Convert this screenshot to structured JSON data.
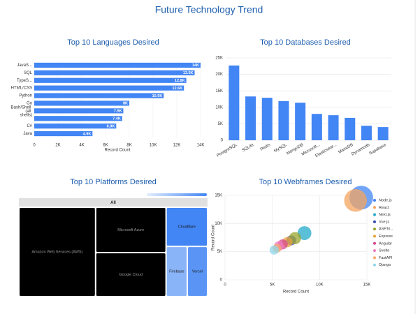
{
  "title": "Future Technology Trend",
  "chart_data": [
    {
      "type": "hbar",
      "title": "Top 10 Languages Desired",
      "xlabel": "Record Count",
      "color": "#4285f4",
      "grid": true,
      "categories": [
        "JavaS...",
        "SQL",
        "TypeS...",
        "HTML/CSS",
        "Python",
        "Go",
        "Bash/Shell (all shells)",
        null,
        "C#",
        "Java"
      ],
      "values": [
        14000,
        13500,
        12800,
        12600,
        10900,
        8000,
        7500,
        7400,
        6900,
        4900
      ],
      "value_labels": [
        "14K",
        "13.5K",
        "12.8K",
        "12.6K",
        "10.9K",
        "8K",
        "7.5K",
        "7.4K",
        "6.9K",
        "4.9K"
      ],
      "xlim": [
        0,
        14000
      ],
      "xticks": [
        0,
        {
          "value": 2000,
          "label": "2K"
        },
        {
          "value": 4000,
          "label": "4K"
        },
        {
          "value": 6000,
          "label": "6K"
        },
        {
          "value": 8000,
          "label": "8K"
        },
        {
          "value": 10000,
          "label": "10K"
        },
        {
          "value": 12000,
          "label": "12K"
        },
        {
          "value": 14000,
          "label": "14K"
        }
      ]
    },
    {
      "type": "bar",
      "title": "Top 10 Databases Desired",
      "color": "#4285f4",
      "grid": true,
      "categories": [
        "PostgreSQL",
        "SQLite",
        "Redis",
        "MySQL",
        "MongoDB",
        "Microsoft...",
        "Elasticsear...",
        "MariaDB",
        "Dynamodb",
        "Supabase"
      ],
      "values": [
        22700,
        13300,
        12900,
        11900,
        11400,
        8000,
        7600,
        6800,
        4400,
        4000
      ],
      "ylim": [
        0,
        25000
      ],
      "yticks": [
        0,
        {
          "value": 5000,
          "label": "5K"
        },
        {
          "value": 10000,
          "label": "10K"
        },
        {
          "value": 15000,
          "label": "15K"
        },
        {
          "value": 20000,
          "label": "20K"
        },
        {
          "value": 25000,
          "label": "25K"
        }
      ]
    },
    {
      "type": "treemap",
      "title": "Top 10 Platforms Desired",
      "header": "All",
      "color_scale": [
        "#e3edfd",
        "#4285f4"
      ],
      "categories": [
        "Amazon Web Services (AWS)",
        "Microsoft Azure",
        "Google Cloud",
        "Cloudflare",
        "Firebase",
        "Vercel"
      ],
      "values": [
        13500,
        6300,
        6100,
        3200,
        2100,
        2000
      ],
      "colors": [
        "#000000",
        "#000000",
        "#000000",
        "#4285f4",
        "#8ab4f8",
        "#5a95f5"
      ]
    },
    {
      "type": "scatter",
      "title": "Top 10 Webframes Desired",
      "xlabel": "Record Count",
      "ylabel": "Record Count",
      "grid": true,
      "legend": "right",
      "xlim": [
        0,
        15000
      ],
      "ylim": [
        0,
        15000
      ],
      "xticks": [
        0,
        {
          "value": 5000,
          "label": "5K"
        },
        {
          "value": 10000,
          "label": "10K"
        },
        {
          "value": 15000,
          "label": "15K"
        }
      ],
      "yticks": [
        0,
        {
          "value": 5000,
          "label": "5K"
        },
        {
          "value": 10000,
          "label": "10K"
        },
        {
          "value": 15000,
          "label": "15K"
        }
      ],
      "series": [
        {
          "name": "Node.js",
          "color": "#4285f4",
          "x": [
            14400
          ],
          "values": [
            14600
          ],
          "sizes": [
            14400
          ]
        },
        {
          "name": "React",
          "color": "#f4a460",
          "x": [
            13800
          ],
          "values": [
            14100
          ],
          "sizes": [
            13800
          ]
        },
        {
          "name": "Next.js",
          "color": "#24a9c9",
          "x": [
            8400
          ],
          "values": [
            8300
          ],
          "sizes": [
            8400
          ]
        },
        {
          "name": "Vue.js",
          "color": "#3949ab",
          "x": [
            7000
          ],
          "values": [
            7000
          ],
          "sizes": [
            6000
          ]
        },
        {
          "name": "ASP.N...",
          "color": "#9aa52f",
          "x": [
            7400
          ],
          "values": [
            7400
          ],
          "sizes": [
            7400
          ]
        },
        {
          "name": "Express",
          "color": "#e8a33a",
          "x": [
            6600
          ],
          "values": [
            6700
          ],
          "sizes": [
            6200
          ]
        },
        {
          "name": "Angular",
          "color": "#d6478c",
          "x": [
            6100
          ],
          "values": [
            6300
          ],
          "sizes": [
            6100
          ]
        },
        {
          "name": "Svelte",
          "color": "#f07bbd",
          "x": [
            5700
          ],
          "values": [
            6000
          ],
          "sizes": [
            5900
          ]
        },
        {
          "name": "FastAPI",
          "color": "#f6a96a",
          "x": [
            5500
          ],
          "values": [
            5600
          ],
          "sizes": [
            5300
          ]
        },
        {
          "name": "Django",
          "color": "#8fd6ea",
          "x": [
            5200
          ],
          "values": [
            5300
          ],
          "sizes": [
            5600
          ]
        }
      ]
    }
  ]
}
